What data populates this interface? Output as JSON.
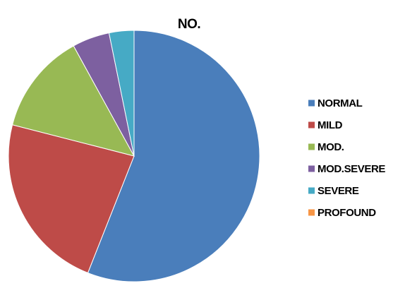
{
  "chart_data": {
    "type": "pie",
    "title": "NO.",
    "categories": [
      "NORMAL",
      "MILD",
      "MOD.",
      "MOD.SEVERE",
      "SEVERE",
      "PROFOUND"
    ],
    "values": [
      56,
      23,
      13,
      4.8,
      3.2,
      0
    ],
    "colors": [
      "#4a7ebb",
      "#be4b48",
      "#98b954",
      "#7d60a0",
      "#46aac5",
      "#f79646"
    ],
    "legend_position": "right",
    "start_angle_deg": 0,
    "direction": "clockwise"
  }
}
